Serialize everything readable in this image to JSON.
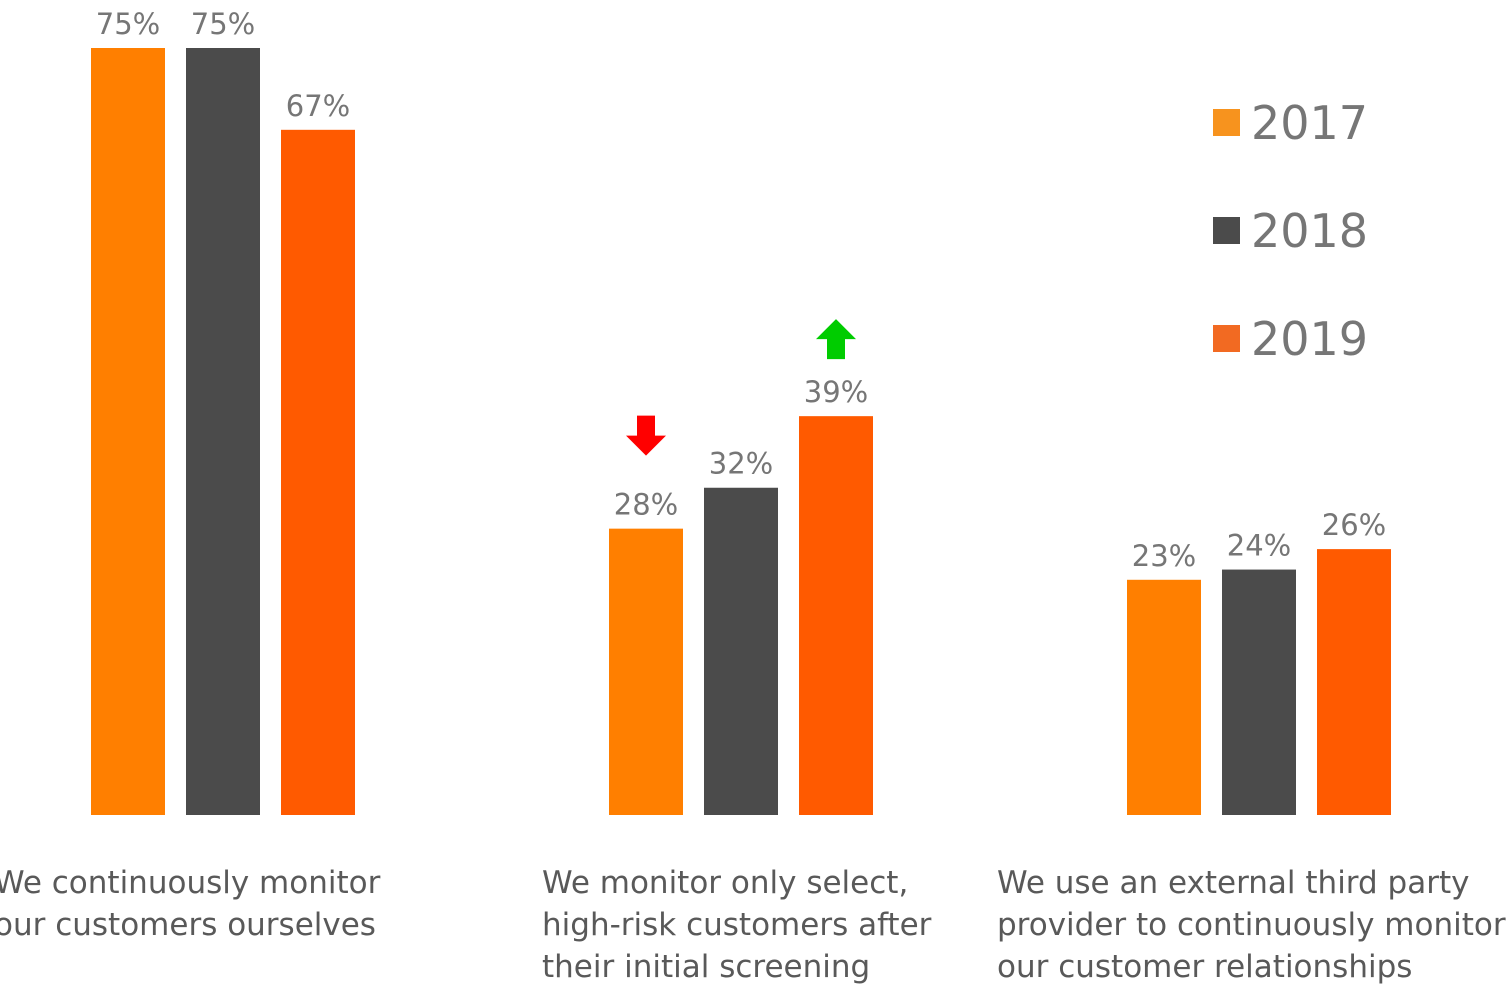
{
  "chart_data": {
    "type": "bar",
    "title": "",
    "xlabel": "",
    "ylabel": "",
    "ylim": [
      0,
      75
    ],
    "grid": false,
    "legend_position": "top-right",
    "categories": [
      "We continuously monitor our customers ourselves",
      "We monitor only select, high-risk customers after their initial screening",
      "We use an external third party provider to continuously monitor our customer relationships"
    ],
    "category_lines": [
      [
        "We continuously monitor",
        "our customers ourselves"
      ],
      [
        "We monitor only select,",
        "high-risk customers after",
        "their initial screening"
      ],
      [
        "We use an external third party",
        "provider to continuously monitor",
        "our customer relationships"
      ]
    ],
    "series": [
      {
        "name": "2017",
        "color": "#FF7F00",
        "legend_color": "#F7931E",
        "values": [
          75,
          28,
          23
        ],
        "labels": [
          "75%",
          "28%",
          "23%"
        ]
      },
      {
        "name": "2018",
        "color": "#4B4B4B",
        "legend_color": "#4B4B4B",
        "values": [
          75,
          32,
          24
        ],
        "labels": [
          "75%",
          "32%",
          "24%"
        ]
      },
      {
        "name": "2019",
        "color": "#FF5A00",
        "legend_color": "#F26A22",
        "values": [
          67,
          39,
          26
        ],
        "labels": [
          "67%",
          "39%",
          "26%"
        ]
      }
    ],
    "annotations": [
      {
        "category": 1,
        "series": 0,
        "icon": "down-arrow",
        "color": "#FF0000"
      },
      {
        "category": 1,
        "series": 2,
        "icon": "up-arrow",
        "color": "#00CC00"
      }
    ]
  }
}
